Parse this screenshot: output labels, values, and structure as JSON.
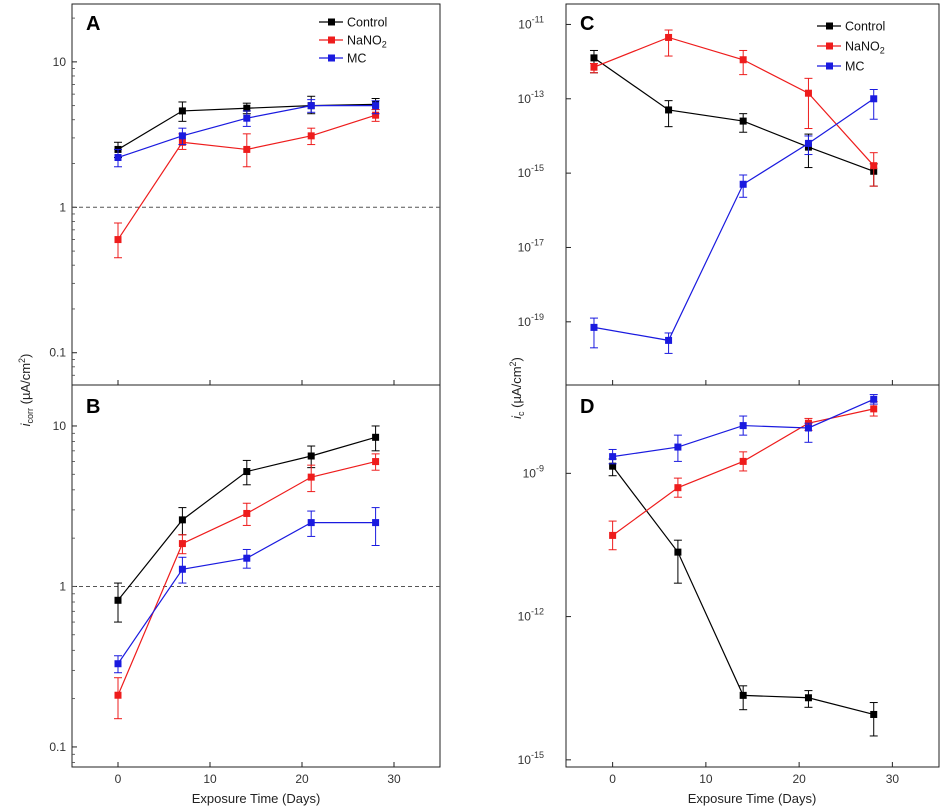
{
  "figure": {
    "left_ylabel_main": "i",
    "left_ylabel_sub": "corr",
    "left_ylabel_units": " (µA/cm",
    "left_ylabel_sup": "2",
    "left_ylabel_close": ")",
    "right_ylabel_main": "i",
    "right_ylabel_sub": "c",
    "right_ylabel_units": " (µA/cm",
    "right_ylabel_sup": "2",
    "right_ylabel_close": ")",
    "left_xlabel": "Exposure Time (Days)",
    "right_xlabel": "Exposure Time (Days)"
  },
  "colors": {
    "control": "#000000",
    "nano2": "#ee1c1c",
    "mc": "#1a1adf",
    "reference_line": "#555555"
  },
  "chart_data": [
    {
      "panel": "A",
      "type": "line",
      "yscale": "log",
      "ylim": [
        0.06,
        25
      ],
      "xlim": [
        -5,
        35
      ],
      "xticks": [
        0,
        10,
        20,
        30
      ],
      "yticks": [
        0.1,
        1,
        10
      ],
      "ytick_labels": [
        "0.1",
        "1",
        "10"
      ],
      "reference_line": 1,
      "legend": "top-right",
      "legend_entries": [
        {
          "name": "Control",
          "series": 0
        },
        {
          "name": "NaNO",
          "sub": "2",
          "series": 1
        },
        {
          "name": "MC",
          "series": 2
        }
      ],
      "series": [
        {
          "name": "Control",
          "color": "#000000",
          "x": [
            0,
            7,
            14,
            21,
            28
          ],
          "y": [
            2.5,
            4.6,
            4.8,
            5.0,
            5.1
          ],
          "yerr_low": [
            2.2,
            3.9,
            4.4,
            4.4,
            4.7
          ],
          "yerr_high": [
            2.8,
            5.3,
            5.2,
            5.8,
            5.6
          ]
        },
        {
          "name": "NaNO2",
          "color": "#ee1c1c",
          "x": [
            0,
            7,
            14,
            21,
            28
          ],
          "y": [
            0.6,
            2.8,
            2.5,
            3.1,
            4.3
          ],
          "yerr_low": [
            0.45,
            2.5,
            1.9,
            2.7,
            3.9
          ],
          "yerr_high": [
            0.78,
            3.2,
            3.2,
            3.5,
            4.7
          ]
        },
        {
          "name": "MC",
          "color": "#1a1adf",
          "x": [
            0,
            7,
            14,
            21,
            28
          ],
          "y": [
            2.2,
            3.1,
            4.1,
            5.0,
            5.0
          ],
          "yerr_low": [
            1.9,
            2.7,
            3.6,
            4.5,
            4.4
          ],
          "yerr_high": [
            2.5,
            3.5,
            4.6,
            5.5,
            5.4
          ]
        }
      ]
    },
    {
      "panel": "B",
      "type": "line",
      "yscale": "log",
      "ylim": [
        0.075,
        18
      ],
      "xlim": [
        -5,
        35
      ],
      "xticks": [
        0,
        10,
        20,
        30
      ],
      "xtick_labels": [
        "0",
        "10",
        "20",
        "30"
      ],
      "yticks": [
        0.1,
        1,
        10
      ],
      "ytick_labels": [
        "0.1",
        "1",
        "10"
      ],
      "reference_line": 1,
      "series": [
        {
          "name": "Control",
          "color": "#000000",
          "x": [
            0,
            7,
            14,
            21,
            28
          ],
          "y": [
            0.82,
            2.6,
            5.2,
            6.5,
            8.5
          ],
          "yerr_low": [
            0.6,
            2.1,
            4.3,
            5.5,
            7.0
          ],
          "yerr_high": [
            1.05,
            3.1,
            6.1,
            7.5,
            10.0
          ]
        },
        {
          "name": "NaNO2",
          "color": "#ee1c1c",
          "x": [
            0,
            7,
            14,
            21,
            28
          ],
          "y": [
            0.21,
            1.85,
            2.85,
            4.8,
            6.0
          ],
          "yerr_low": [
            0.15,
            1.6,
            2.4,
            3.9,
            5.3
          ],
          "yerr_high": [
            0.27,
            2.1,
            3.3,
            5.7,
            6.7
          ]
        },
        {
          "name": "MC",
          "color": "#1a1adf",
          "x": [
            0,
            7,
            14,
            21,
            28
          ],
          "y": [
            0.33,
            1.28,
            1.5,
            2.5,
            2.5
          ],
          "yerr_low": [
            0.29,
            1.05,
            1.3,
            2.05,
            1.8
          ],
          "yerr_high": [
            0.37,
            1.52,
            1.7,
            2.95,
            3.1
          ]
        }
      ]
    },
    {
      "panel": "C",
      "type": "line",
      "yscale": "log",
      "ylim": [
        -20.7,
        -10.45
      ],
      "ylim_note": "log10 units",
      "xlim": [
        -5,
        35
      ],
      "xticks": [
        0,
        10,
        20,
        30
      ],
      "yticks": [
        -19,
        -17,
        -15,
        -13,
        -11
      ],
      "ytick_labels": [
        "10",
        "10",
        "10",
        "10",
        "10"
      ],
      "ytick_exponents": [
        "-19",
        "-17",
        "-15",
        "-13",
        "-11"
      ],
      "legend": "top-right",
      "legend_entries": [
        {
          "name": "Control",
          "series": 0
        },
        {
          "name": "NaNO",
          "sub": "2",
          "series": 1
        },
        {
          "name": "MC",
          "series": 2
        }
      ],
      "series": [
        {
          "name": "Control",
          "color": "#000000",
          "x": [
            -2,
            6,
            14,
            21,
            28
          ],
          "y": [
            -11.9,
            -13.3,
            -13.6,
            -14.3,
            -14.95
          ],
          "yerr_low": [
            -12.3,
            -13.75,
            -13.9,
            -14.85,
            -15.35
          ],
          "yerr_high": [
            -11.7,
            -13.05,
            -13.4,
            -13.95,
            -14.75
          ]
        },
        {
          "name": "NaNO2",
          "color": "#ee1c1c",
          "x": [
            -2,
            6,
            14,
            21,
            28
          ],
          "y": [
            -12.15,
            -11.35,
            -11.95,
            -12.85,
            -14.8
          ],
          "yerr_low": [
            -12.3,
            -11.85,
            -12.35,
            -13.8,
            -15.35
          ],
          "yerr_high": [
            -12.05,
            -11.15,
            -11.7,
            -12.45,
            -14.45
          ]
        },
        {
          "name": "MC",
          "color": "#1a1adf",
          "x": [
            -2,
            6,
            14,
            21,
            28
          ],
          "y": [
            -19.15,
            -19.5,
            -15.3,
            -14.2,
            -13.0
          ],
          "yerr_low": [
            -19.7,
            -19.85,
            -15.65,
            -14.5,
            -13.55
          ],
          "yerr_high": [
            -18.9,
            -19.3,
            -15.05,
            -14.0,
            -12.75
          ]
        }
      ]
    },
    {
      "panel": "D",
      "type": "line",
      "yscale": "log",
      "ylim": [
        -15.15,
        -7.15
      ],
      "ylim_note": "log10 units",
      "xlim": [
        -5,
        35
      ],
      "xticks": [
        0,
        10,
        20,
        30
      ],
      "xtick_labels": [
        "0",
        "10",
        "20",
        "30"
      ],
      "yticks": [
        -15,
        -12,
        -9
      ],
      "ytick_labels": [
        "10",
        "10",
        "10"
      ],
      "ytick_exponents": [
        "-15",
        "-12",
        "-9"
      ],
      "series": [
        {
          "name": "Control",
          "color": "#000000",
          "x": [
            0,
            7,
            14,
            21,
            28
          ],
          "y": [
            -8.85,
            -10.65,
            -13.65,
            -13.7,
            -14.05
          ],
          "yerr_low": [
            -9.05,
            -11.3,
            -13.95,
            -13.9,
            -14.5
          ],
          "yerr_high": [
            -8.7,
            -10.4,
            -13.45,
            -13.55,
            -13.8
          ]
        },
        {
          "name": "NaNO2",
          "color": "#ee1c1c",
          "x": [
            0,
            7,
            14,
            21,
            28
          ],
          "y": [
            -10.3,
            -9.3,
            -8.75,
            -7.95,
            -7.65
          ],
          "yerr_low": [
            -10.6,
            -9.5,
            -8.95,
            -8.1,
            -7.8
          ],
          "yerr_high": [
            -10.0,
            -9.1,
            -8.55,
            -7.85,
            -7.5
          ]
        },
        {
          "name": "MC",
          "color": "#1a1adf",
          "x": [
            0,
            7,
            14,
            21,
            28
          ],
          "y": [
            -8.65,
            -8.45,
            -8.0,
            -8.05,
            -7.45
          ],
          "yerr_low": [
            -8.8,
            -8.75,
            -8.2,
            -8.35,
            -7.55
          ],
          "yerr_high": [
            -8.5,
            -8.2,
            -7.8,
            -7.95,
            -7.35
          ]
        }
      ]
    }
  ]
}
